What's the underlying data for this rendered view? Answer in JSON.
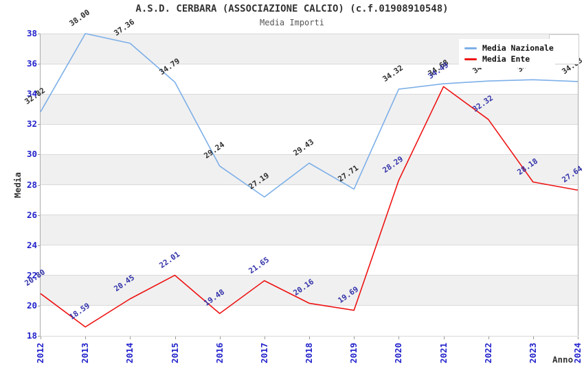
{
  "title": "A.S.D. CERBARA (ASSOCIAZIONE CALCIO) (c.f.01908910548)",
  "subtitle": "Media Importi",
  "axes": {
    "y_label": "Media",
    "x_label": "Anno"
  },
  "legend": {
    "items": [
      {
        "label": "Media Nazionale",
        "color": "#7cafe8"
      },
      {
        "label": "Media Ente",
        "color": "#ee1111"
      }
    ]
  },
  "colors": {
    "band": "#f0f0f0",
    "gridline": "#d9d9d9",
    "axis": "#ababab",
    "tick_label": "#2222cc",
    "title": "#333333",
    "subtitle": "#555555"
  },
  "chart_data": {
    "type": "line",
    "x": [
      2012,
      2013,
      2014,
      2015,
      2016,
      2017,
      2018,
      2019,
      2020,
      2021,
      2022,
      2023,
      2024
    ],
    "series": [
      {
        "name": "Media Nazionale",
        "color": "#7cafe8",
        "label_color": "#2e2e2e",
        "values": [
          32.82,
          38.0,
          37.36,
          34.79,
          29.24,
          27.19,
          29.43,
          27.71,
          34.32,
          34.68,
          34.86,
          34.95,
          34.83
        ]
      },
      {
        "name": "Media Ente",
        "color": "#ee1111",
        "label_color": "#3333aa",
        "values": [
          20.8,
          18.59,
          20.45,
          22.01,
          19.48,
          21.65,
          20.16,
          19.69,
          28.29,
          34.49,
          32.32,
          28.18,
          27.64
        ]
      }
    ],
    "ylim": [
      18,
      38
    ],
    "yticks": [
      38,
      36,
      34,
      32,
      30,
      28,
      26,
      24,
      22,
      20,
      18
    ],
    "ytick_step": 2,
    "title": "Media Importi",
    "xlabel": "Anno",
    "ylabel": "Media",
    "grid": "horizontal-bands-alternating",
    "legend_position": "top-right",
    "data_labels": true
  }
}
